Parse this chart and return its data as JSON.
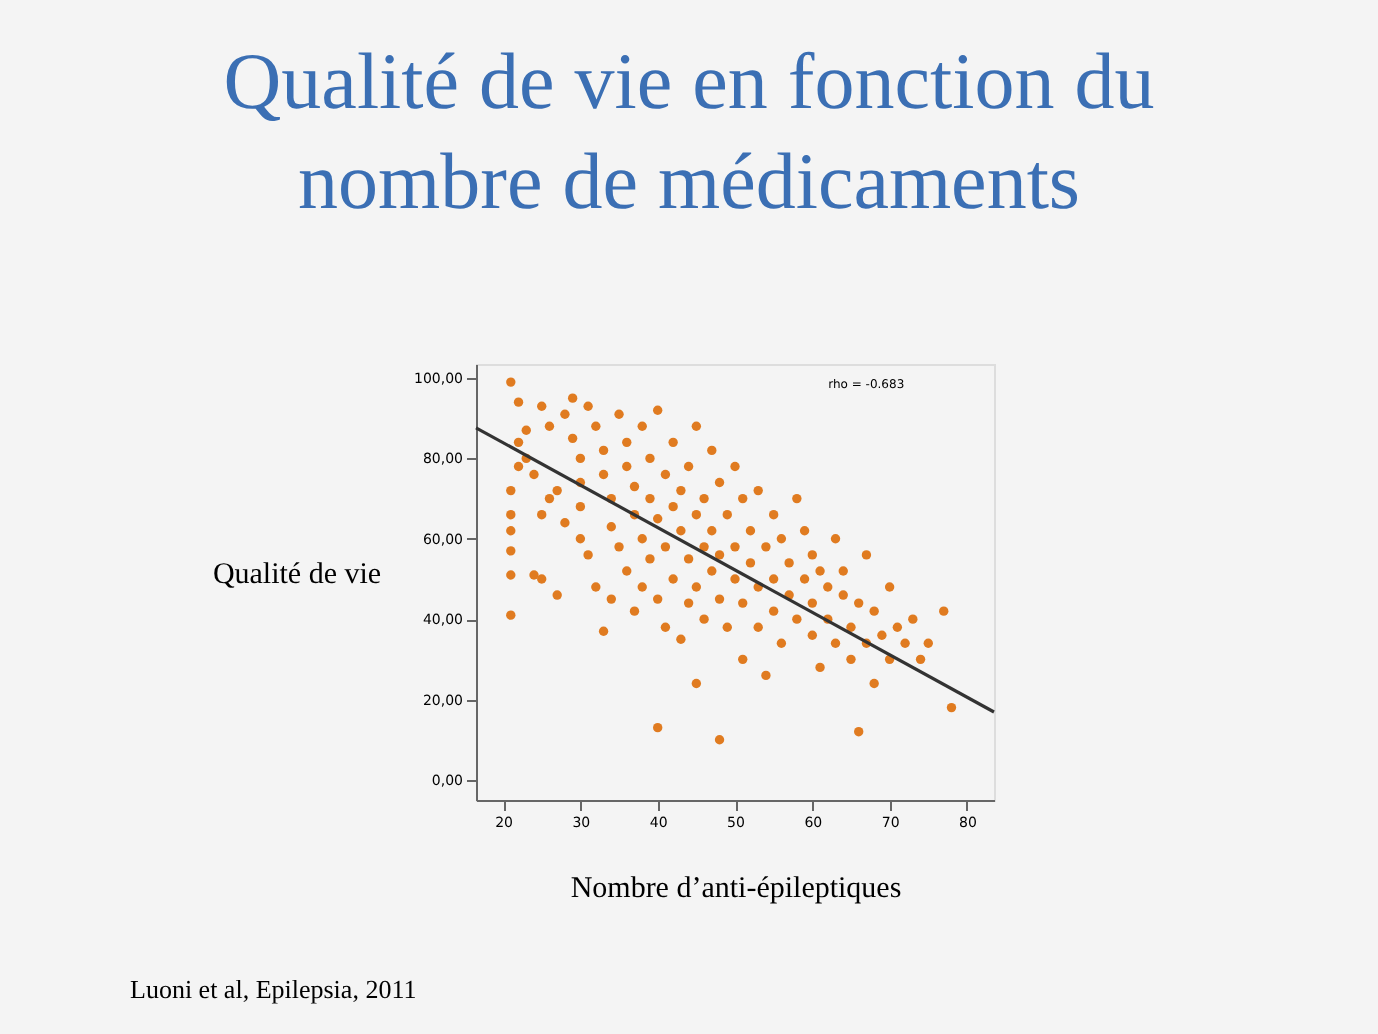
{
  "chart_data": {
    "type": "scatter",
    "title": [
      "Qualité de vie en fonction du",
      "nombre de médicaments"
    ],
    "xlabel": "Nombre d’anti-épileptiques",
    "ylabel": "Qualité de vie",
    "annotations": [
      "rho = -0.683",
      "Luoni et al, Epilepsia, 2011"
    ],
    "xlim": [
      16.5,
      83.5
    ],
    "ylim": [
      -5,
      103.5
    ],
    "xticks": [
      20,
      30,
      40,
      50,
      60,
      70,
      80
    ],
    "yticks": [
      {
        "value": 0,
        "label": "0,00"
      },
      {
        "value": 20,
        "label": "20,00"
      },
      {
        "value": 40,
        "label": "40,00"
      },
      {
        "value": 60,
        "label": "60,00"
      },
      {
        "value": 80,
        "label": "80,00"
      },
      {
        "value": 100,
        "label": "100,00"
      }
    ],
    "grid": false,
    "marker": "circle",
    "series": [
      {
        "color": "#e07b20",
        "x": [
          21,
          21,
          21,
          21,
          21,
          21,
          21,
          22,
          22,
          23,
          23,
          22,
          24,
          25,
          27,
          25,
          26,
          24,
          26,
          25,
          28,
          27,
          28,
          29,
          29,
          30,
          30,
          30,
          30,
          31,
          31,
          32,
          33,
          32,
          33,
          33,
          34,
          34,
          34,
          35,
          35,
          36,
          36,
          36,
          37,
          37,
          37,
          38,
          38,
          38,
          39,
          39,
          39,
          40,
          40,
          40,
          40,
          41,
          41,
          41,
          42,
          42,
          42,
          43,
          43,
          43,
          44,
          44,
          44,
          45,
          45,
          45,
          45,
          46,
          46,
          46,
          47,
          47,
          47,
          48,
          48,
          48,
          48,
          49,
          49,
          50,
          50,
          50,
          51,
          51,
          51,
          52,
          52,
          53,
          53,
          53,
          54,
          54,
          55,
          55,
          55,
          56,
          56,
          57,
          57,
          58,
          58,
          59,
          59,
          60,
          60,
          60,
          61,
          61,
          62,
          62,
          63,
          63,
          64,
          64,
          65,
          65,
          66,
          66,
          67,
          67,
          68,
          68,
          69,
          70,
          70,
          71,
          72,
          73,
          74,
          75,
          77,
          78
        ],
        "values": [
          99,
          41,
          51,
          57,
          62,
          66,
          72,
          78,
          84,
          87,
          80,
          94,
          51,
          50,
          46,
          93,
          88,
          76,
          70,
          66,
          64,
          72,
          91,
          95,
          85,
          80,
          74,
          68,
          60,
          93,
          56,
          48,
          37,
          88,
          82,
          76,
          70,
          63,
          45,
          91,
          58,
          84,
          78,
          52,
          73,
          66,
          42,
          88,
          60,
          48,
          80,
          70,
          55,
          13,
          92,
          65,
          45,
          76,
          58,
          38,
          84,
          68,
          50,
          62,
          72,
          35,
          78,
          55,
          44,
          24,
          88,
          66,
          48,
          58,
          70,
          40,
          62,
          52,
          82,
          10,
          74,
          45,
          56,
          66,
          38,
          58,
          50,
          78,
          70,
          44,
          30,
          62,
          54,
          48,
          72,
          38,
          58,
          26,
          66,
          50,
          42,
          60,
          34,
          54,
          46,
          70,
          40,
          62,
          50,
          56,
          44,
          36,
          52,
          28,
          48,
          40,
          60,
          34,
          46,
          52,
          38,
          30,
          12,
          44,
          56,
          34,
          42,
          24,
          36,
          48,
          30,
          38,
          34,
          40,
          30,
          34,
          42,
          18
        ]
      },
      {
        "type": "line",
        "color": "#333333",
        "marker": "none",
        "x": [
          16.5,
          83.5
        ],
        "values": [
          87.6,
          16.9
        ]
      }
    ]
  }
}
